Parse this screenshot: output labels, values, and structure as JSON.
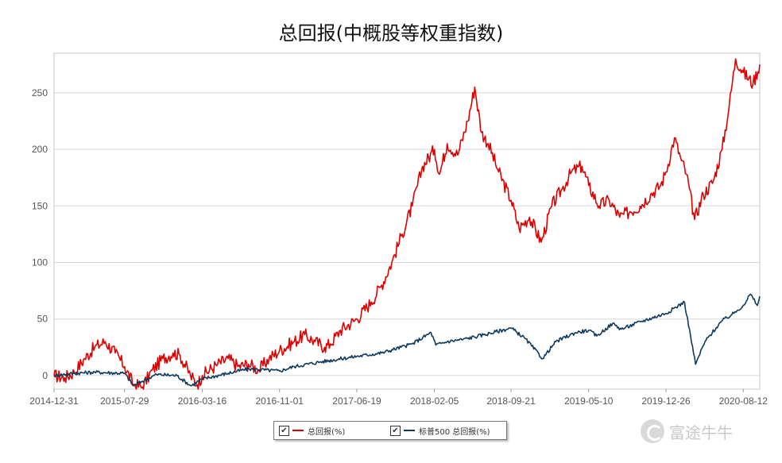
{
  "chart_data": {
    "type": "line",
    "title": "总回报(中概股等权重指数)",
    "xlabel": "",
    "ylabel": "",
    "ylim": [
      -12,
      285
    ],
    "yticks": [
      0,
      50,
      100,
      150,
      200,
      250
    ],
    "x_tick_labels": [
      "2014-12-31",
      "2015-07-29",
      "2016-03-16",
      "2016-11-01",
      "2017-06-19",
      "2018-02-05",
      "2018-09-21",
      "2019-05-10",
      "2019-12-26",
      "2020-08-12"
    ],
    "x_range": [
      "2014-12-31",
      "2020-09-30"
    ],
    "grid": "horizontal",
    "legend_position": "bottom",
    "series": [
      {
        "name": "总回报(%)",
        "color": "#e00000",
        "points": [
          [
            "2014-12-31",
            0
          ],
          [
            "2015-02-01",
            -2
          ],
          [
            "2015-03-01",
            3
          ],
          [
            "2015-04-01",
            15
          ],
          [
            "2015-05-01",
            25
          ],
          [
            "2015-06-01",
            30
          ],
          [
            "2015-07-01",
            20
          ],
          [
            "2015-07-29",
            8
          ],
          [
            "2015-08-24",
            -8
          ],
          [
            "2015-09-20",
            -10
          ],
          [
            "2015-10-20",
            5
          ],
          [
            "2015-11-20",
            15
          ],
          [
            "2015-12-20",
            20
          ],
          [
            "2016-01-10",
            18
          ],
          [
            "2016-02-10",
            0
          ],
          [
            "2016-03-01",
            -8
          ],
          [
            "2016-03-16",
            0
          ],
          [
            "2016-05-01",
            10
          ],
          [
            "2016-06-01",
            15
          ],
          [
            "2016-07-01",
            8
          ],
          [
            "2016-08-01",
            10
          ],
          [
            "2016-09-01",
            5
          ],
          [
            "2016-10-01",
            15
          ],
          [
            "2016-11-01",
            22
          ],
          [
            "2016-12-15",
            30
          ],
          [
            "2017-01-15",
            36
          ],
          [
            "2017-02-15",
            30
          ],
          [
            "2017-03-15",
            25
          ],
          [
            "2017-04-01",
            28
          ],
          [
            "2017-05-01",
            40
          ],
          [
            "2017-06-19",
            50
          ],
          [
            "2017-08-01",
            65
          ],
          [
            "2017-09-01",
            80
          ],
          [
            "2017-10-01",
            100
          ],
          [
            "2017-11-01",
            125
          ],
          [
            "2017-12-01",
            150
          ],
          [
            "2018-01-01",
            185
          ],
          [
            "2018-02-05",
            200
          ],
          [
            "2018-02-20",
            178
          ],
          [
            "2018-03-15",
            205
          ],
          [
            "2018-04-15",
            195
          ],
          [
            "2018-05-15",
            225
          ],
          [
            "2018-06-05",
            255
          ],
          [
            "2018-06-25",
            215
          ],
          [
            "2018-07-15",
            205
          ],
          [
            "2018-08-15",
            180
          ],
          [
            "2018-09-21",
            155
          ],
          [
            "2018-10-15",
            130
          ],
          [
            "2018-11-15",
            140
          ],
          [
            "2018-12-20",
            118
          ],
          [
            "2019-01-20",
            150
          ],
          [
            "2019-02-20",
            165
          ],
          [
            "2019-03-20",
            180
          ],
          [
            "2019-04-20",
            185
          ],
          [
            "2019-05-10",
            168
          ],
          [
            "2019-06-10",
            150
          ],
          [
            "2019-07-10",
            155
          ],
          [
            "2019-08-10",
            140
          ],
          [
            "2019-09-10",
            145
          ],
          [
            "2019-10-10",
            150
          ],
          [
            "2019-11-10",
            160
          ],
          [
            "2019-12-10",
            168
          ],
          [
            "2019-12-26",
            180
          ],
          [
            "2020-01-20",
            210
          ],
          [
            "2020-02-10",
            190
          ],
          [
            "2020-02-25",
            178
          ],
          [
            "2020-03-20",
            138
          ],
          [
            "2020-04-15",
            160
          ],
          [
            "2020-05-15",
            172
          ],
          [
            "2020-06-10",
            200
          ],
          [
            "2020-07-01",
            238
          ],
          [
            "2020-07-20",
            280
          ],
          [
            "2020-08-12",
            268
          ],
          [
            "2020-09-10",
            258
          ],
          [
            "2020-09-30",
            275
          ]
        ]
      },
      {
        "name": "标普500 总回报(%)",
        "color": "#0e3a5e",
        "points": [
          [
            "2014-12-31",
            0
          ],
          [
            "2015-03-01",
            2
          ],
          [
            "2015-05-01",
            3
          ],
          [
            "2015-07-29",
            2
          ],
          [
            "2015-08-24",
            -9
          ],
          [
            "2015-09-20",
            -5
          ],
          [
            "2015-11-01",
            1
          ],
          [
            "2016-01-01",
            0
          ],
          [
            "2016-02-11",
            -9
          ],
          [
            "2016-03-16",
            -3
          ],
          [
            "2016-06-01",
            2
          ],
          [
            "2016-08-01",
            6
          ],
          [
            "2016-11-01",
            4
          ],
          [
            "2016-12-15",
            8
          ],
          [
            "2017-03-01",
            12
          ],
          [
            "2017-06-19",
            17
          ],
          [
            "2017-09-01",
            20
          ],
          [
            "2017-12-01",
            28
          ],
          [
            "2018-01-26",
            38
          ],
          [
            "2018-02-09",
            27
          ],
          [
            "2018-03-15",
            30
          ],
          [
            "2018-05-01",
            32
          ],
          [
            "2018-07-01",
            36
          ],
          [
            "2018-09-21",
            42
          ],
          [
            "2018-11-01",
            33
          ],
          [
            "2018-12-24",
            15
          ],
          [
            "2019-02-01",
            30
          ],
          [
            "2019-04-01",
            38
          ],
          [
            "2019-05-10",
            40
          ],
          [
            "2019-06-03",
            35
          ],
          [
            "2019-07-20",
            46
          ],
          [
            "2019-08-15",
            41
          ],
          [
            "2019-10-15",
            48
          ],
          [
            "2019-12-26",
            55
          ],
          [
            "2020-02-19",
            65
          ],
          [
            "2020-03-23",
            10
          ],
          [
            "2020-04-20",
            30
          ],
          [
            "2020-06-08",
            48
          ],
          [
            "2020-07-15",
            55
          ],
          [
            "2020-08-12",
            62
          ],
          [
            "2020-09-02",
            72
          ],
          [
            "2020-09-23",
            62
          ],
          [
            "2020-09-30",
            70
          ]
        ]
      }
    ]
  },
  "legend": {
    "check_glyph": "✔",
    "items": [
      {
        "label": "总回报(%)",
        "color": "#e00000"
      },
      {
        "label": "标普500 总回报(%)",
        "color": "#0e3a5e"
      }
    ]
  },
  "watermark": {
    "text": "富途牛牛"
  }
}
